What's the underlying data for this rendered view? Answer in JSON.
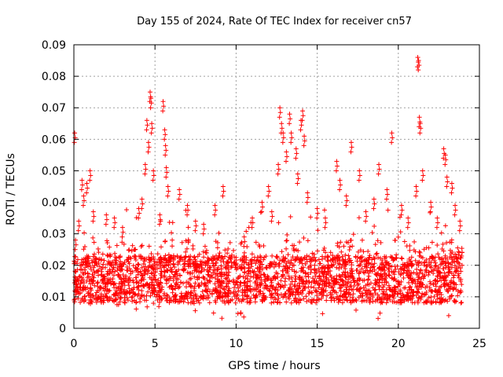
{
  "chart_data": {
    "type": "scatter",
    "title": "Day 155 of 2024, Rate Of TEC Index for receiver cn57",
    "xlabel": "GPS time / hours",
    "ylabel": "ROTI / TECUs",
    "xlim": [
      0,
      25
    ],
    "ylim": [
      0,
      0.09
    ],
    "x_ticks": [
      0,
      5,
      10,
      15,
      20,
      25
    ],
    "x_tick_labels": [
      "0",
      "5",
      "10",
      "15",
      "20",
      "25"
    ],
    "y_ticks": [
      0,
      0.01,
      0.02,
      0.03,
      0.04,
      0.05,
      0.06,
      0.07,
      0.08,
      0.09
    ],
    "y_tick_labels": [
      "0",
      "0.01",
      "0.02",
      "0.03",
      "0.04",
      "0.05",
      "0.06",
      "0.07",
      "0.08",
      "0.09"
    ],
    "grid": true,
    "marker": "+",
    "color": "#ff0000",
    "points": [
      [
        0.05,
        0.062
      ],
      [
        0.1,
        0.028
      ],
      [
        0.3,
        0.034
      ],
      [
        0.5,
        0.047
      ],
      [
        0.6,
        0.042
      ],
      [
        0.8,
        0.046
      ],
      [
        1.0,
        0.05
      ],
      [
        1.2,
        0.037
      ],
      [
        2.0,
        0.036
      ],
      [
        2.5,
        0.035
      ],
      [
        3.0,
        0.032
      ],
      [
        4.0,
        0.038
      ],
      [
        4.2,
        0.041
      ],
      [
        4.4,
        0.052
      ],
      [
        4.5,
        0.066
      ],
      [
        4.6,
        0.059
      ],
      [
        4.7,
        0.075
      ],
      [
        4.75,
        0.073
      ],
      [
        4.8,
        0.065
      ],
      [
        4.9,
        0.05
      ],
      [
        5.3,
        0.036
      ],
      [
        5.5,
        0.072
      ],
      [
        5.6,
        0.063
      ],
      [
        5.65,
        0.058
      ],
      [
        5.7,
        0.051
      ],
      [
        5.8,
        0.045
      ],
      [
        6.5,
        0.044
      ],
      [
        7.0,
        0.039
      ],
      [
        7.5,
        0.034
      ],
      [
        8.0,
        0.033
      ],
      [
        8.7,
        0.039
      ],
      [
        9.2,
        0.045
      ],
      [
        10.5,
        0.029
      ],
      [
        11.0,
        0.035
      ],
      [
        11.6,
        0.04
      ],
      [
        12.0,
        0.045
      ],
      [
        12.2,
        0.037
      ],
      [
        12.6,
        0.052
      ],
      [
        12.7,
        0.07
      ],
      [
        12.8,
        0.065
      ],
      [
        12.9,
        0.062
      ],
      [
        13.1,
        0.056
      ],
      [
        13.3,
        0.068
      ],
      [
        13.4,
        0.062
      ],
      [
        13.7,
        0.057
      ],
      [
        13.8,
        0.049
      ],
      [
        14.0,
        0.066
      ],
      [
        14.1,
        0.069
      ],
      [
        14.2,
        0.061
      ],
      [
        14.4,
        0.043
      ],
      [
        15.0,
        0.038
      ],
      [
        15.5,
        0.035
      ],
      [
        16.2,
        0.053
      ],
      [
        16.4,
        0.047
      ],
      [
        16.8,
        0.042
      ],
      [
        17.1,
        0.059
      ],
      [
        17.6,
        0.05
      ],
      [
        18.0,
        0.037
      ],
      [
        18.5,
        0.041
      ],
      [
        18.8,
        0.052
      ],
      [
        19.3,
        0.044
      ],
      [
        19.6,
        0.062
      ],
      [
        20.2,
        0.039
      ],
      [
        20.6,
        0.035
      ],
      [
        21.1,
        0.045
      ],
      [
        21.2,
        0.086
      ],
      [
        21.25,
        0.085
      ],
      [
        21.3,
        0.067
      ],
      [
        21.35,
        0.065
      ],
      [
        21.5,
        0.05
      ],
      [
        22.0,
        0.04
      ],
      [
        22.4,
        0.035
      ],
      [
        22.8,
        0.057
      ],
      [
        22.9,
        0.055
      ],
      [
        23.0,
        0.048
      ],
      [
        23.3,
        0.046
      ],
      [
        23.5,
        0.039
      ],
      [
        23.8,
        0.034
      ]
    ],
    "dense_band": {
      "x_range": [
        0,
        23.95
      ],
      "y_floor": 0.003,
      "y_typical": [
        0.008,
        0.028
      ]
    }
  }
}
